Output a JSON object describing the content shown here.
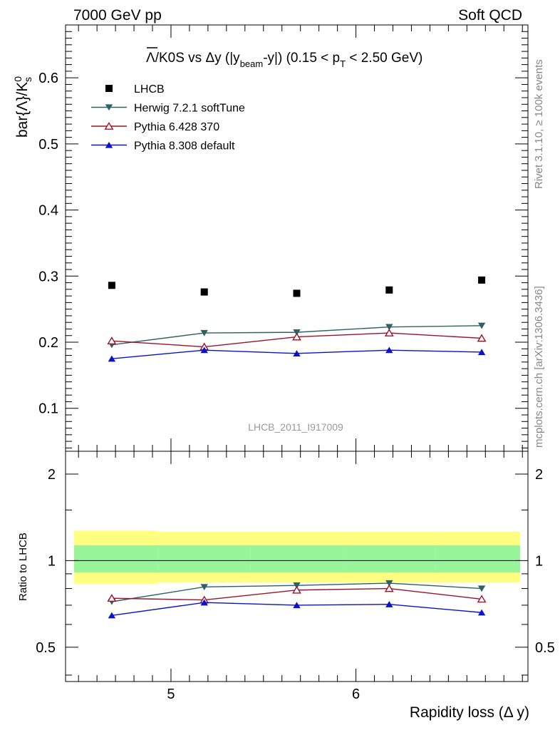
{
  "header": {
    "left": "7000 GeV pp",
    "right": "Soft QCD"
  },
  "side_labels": {
    "rivet": "Rivet 3.1.10, ≥ 100k events",
    "mcplots": "mcplots.cern.ch [arXiv:1306.3436]"
  },
  "watermark": "LHCB_2011_I917009",
  "legend_position": "top-left",
  "chart_data": [
    {
      "type": "scatter",
      "panel": "main",
      "title_parts": {
        "overline": "Λ",
        "t1": "/K0S vs Δy (|y",
        "sub1": "beam",
        "t2": "-y|) (0.15 < p",
        "sub2": "T",
        "t3": " < 2.50 GeV)"
      },
      "ylabel_parts": {
        "a": "bar{Λ}/K",
        "sup": "0",
        "sub": "s"
      },
      "xlim": [
        4.43,
        6.93
      ],
      "ylim": [
        0.035,
        0.68
      ],
      "yticks": [
        0.1,
        0.2,
        0.3,
        0.4,
        0.5,
        0.6
      ],
      "ytick_labels": [
        "0.1",
        "0.2",
        "0.3",
        "0.4",
        "0.5",
        "0.6"
      ],
      "grid": false,
      "x": [
        4.68,
        5.18,
        5.68,
        6.18,
        6.68
      ],
      "series": [
        {
          "name": "LHCB",
          "color": "#000000",
          "marker": "square",
          "line": false,
          "values": [
            0.286,
            0.276,
            0.274,
            0.279,
            0.294
          ]
        },
        {
          "name": "Herwig 7.2.1 softTune",
          "color": "#2e6165",
          "marker": "triangle-down",
          "line": true,
          "values": [
            0.196,
            0.214,
            0.215,
            0.223,
            0.225
          ]
        },
        {
          "name": "Pythia 6.428 370",
          "color": "#a0102a",
          "marker": "triangle-up-open",
          "line": true,
          "values": [
            0.202,
            0.193,
            0.208,
            0.214,
            0.206
          ]
        },
        {
          "name": "Pythia 8.308 default",
          "color": "#0a12cc",
          "marker": "triangle-up",
          "line": true,
          "values": [
            0.175,
            0.188,
            0.183,
            0.188,
            0.185
          ]
        }
      ]
    },
    {
      "type": "line",
      "panel": "ratio",
      "ylabel": "Ratio to LHCB",
      "xlabel": "Rapidity loss (Δ y)",
      "xlim": [
        4.43,
        6.93
      ],
      "ylim": [
        0.38,
        2.4
      ],
      "yscale": "log",
      "xticks": [
        5,
        6
      ],
      "xtick_labels": [
        "5",
        "6"
      ],
      "yticks": [
        0.5,
        1,
        2
      ],
      "ytick_labels": [
        "0.5",
        "1",
        "2"
      ],
      "x": [
        4.68,
        5.18,
        5.68,
        6.18,
        6.68
      ],
      "bin_edges": [
        4.43,
        4.93,
        5.43,
        5.93,
        6.43,
        6.93
      ],
      "band_outer": [
        [
          0.83,
          1.27
        ],
        [
          0.84,
          1.26
        ],
        [
          0.84,
          1.26
        ],
        [
          0.84,
          1.26
        ],
        [
          0.84,
          1.26
        ]
      ],
      "band_inner": [
        [
          0.91,
          1.13
        ],
        [
          0.91,
          1.13
        ],
        [
          0.91,
          1.13
        ],
        [
          0.91,
          1.13
        ],
        [
          0.91,
          1.13
        ]
      ],
      "band_outer_color": "#ffff80",
      "band_inner_color": "#99f599",
      "series": [
        {
          "name": "Herwig 7.2.1 softTune",
          "color": "#2e6165",
          "marker": "triangle-down",
          "values": [
            0.72,
            0.81,
            0.82,
            0.835,
            0.8
          ]
        },
        {
          "name": "Pythia 6.428 370",
          "color": "#a0102a",
          "marker": "triangle-up-open",
          "values": [
            0.74,
            0.73,
            0.79,
            0.8,
            0.735
          ]
        },
        {
          "name": "Pythia 8.308 default",
          "color": "#0a12cc",
          "marker": "triangle-up",
          "values": [
            0.645,
            0.715,
            0.7,
            0.705,
            0.66
          ]
        }
      ]
    }
  ]
}
